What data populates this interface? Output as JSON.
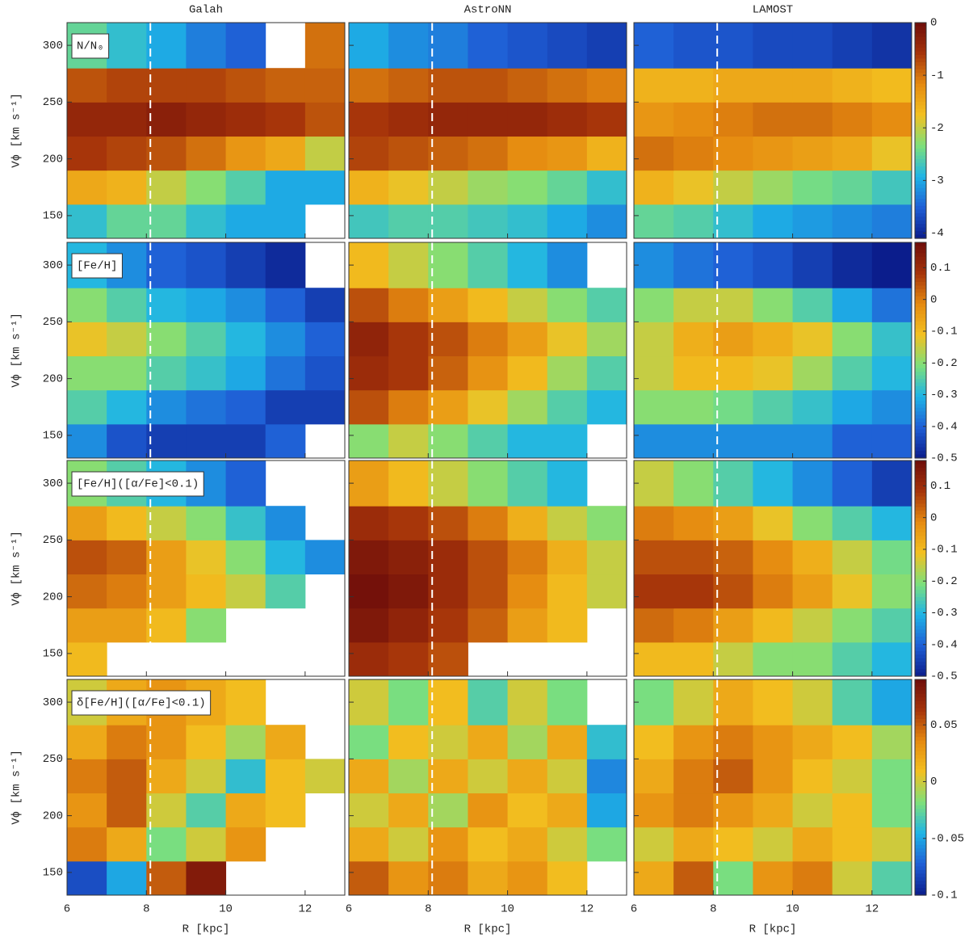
{
  "colormap": [
    "#0b1d8c",
    "#1f5fd6",
    "#1eb4e6",
    "#7ee07a",
    "#f3c020",
    "#e58a10",
    "#a5330a",
    "#6e0d0a"
  ],
  "chart_data": [
    {
      "type": "heatmap",
      "title": "Galah",
      "label": "N/N₀",
      "ylabel": "Vϕ [km s⁻¹]",
      "x_bins": [
        6,
        7,
        8,
        9,
        10,
        11,
        12,
        13
      ],
      "y_bins": [
        130,
        160,
        190,
        220,
        250,
        280,
        320
      ],
      "xlim": [
        6,
        13
      ],
      "ylim": [
        130,
        320
      ],
      "xticks": [
        6,
        8,
        10,
        12
      ],
      "yticks": [
        150,
        200,
        250,
        300
      ],
      "clim": [
        -4.1,
        0
      ],
      "reference_x": 8.1,
      "values": [
        [
          -2.8,
          -2.5,
          -2.5,
          -2.8,
          -3,
          -3,
          null
        ],
        [
          -1.5,
          -1.6,
          -2,
          -2.3,
          -2.6,
          -3,
          -3
        ],
        [
          -0.6,
          -0.7,
          -0.8,
          -1,
          -1.3,
          -1.5,
          -2
        ],
        [
          -0.4,
          -0.4,
          -0.3,
          -0.4,
          -0.5,
          -0.6,
          -0.8
        ],
        [
          -0.8,
          -0.7,
          -0.7,
          -0.7,
          -0.8,
          -0.9,
          -0.9
        ],
        [
          -2.5,
          -2.8,
          -3,
          -3.3,
          -3.5,
          null,
          -1
        ]
      ]
    },
    {
      "type": "heatmap",
      "title": "AstroNN",
      "x_bins": [
        6,
        7,
        8,
        9,
        10,
        11,
        12,
        13
      ],
      "y_bins": [
        130,
        160,
        190,
        220,
        250,
        280,
        320
      ],
      "xlim": [
        6,
        13
      ],
      "ylim": [
        130,
        320
      ],
      "xticks": [
        6,
        8,
        10,
        12
      ],
      "yticks": [
        150,
        200,
        250,
        300
      ],
      "clim": [
        -4.1,
        0
      ],
      "reference_x": 8.1,
      "values": [
        [
          -2.7,
          -2.6,
          -2.6,
          -2.7,
          -2.8,
          -3,
          -3.2
        ],
        [
          -1.6,
          -1.8,
          -2,
          -2.2,
          -2.3,
          -2.5,
          -2.8
        ],
        [
          -0.7,
          -0.8,
          -0.9,
          -1,
          -1.2,
          -1.3,
          -1.6
        ],
        [
          -0.6,
          -0.5,
          -0.4,
          -0.4,
          -0.4,
          -0.5,
          -0.6
        ],
        [
          -1,
          -0.9,
          -0.8,
          -0.8,
          -0.9,
          -1,
          -1.1
        ],
        [
          -3,
          -3.2,
          -3.3,
          -3.5,
          -3.6,
          -3.7,
          -3.8
        ]
      ]
    },
    {
      "type": "heatmap",
      "title": "LAMOST",
      "x_bins": [
        6,
        7,
        8,
        9,
        10,
        11,
        12,
        13
      ],
      "y_bins": [
        130,
        160,
        190,
        220,
        250,
        280,
        320
      ],
      "xlim": [
        6,
        13
      ],
      "ylim": [
        130,
        320
      ],
      "xticks": [
        6,
        8,
        10,
        12
      ],
      "yticks": [
        150,
        200,
        250,
        300
      ],
      "clim": [
        -4.1,
        0
      ],
      "reference_x": 8.1,
      "colorbar_ticks": [
        0,
        -1,
        -2,
        -3,
        -4
      ],
      "values": [
        [
          -2.5,
          -2.6,
          -2.8,
          -3,
          -3.1,
          -3.2,
          -3.3
        ],
        [
          -1.6,
          -1.8,
          -2,
          -2.2,
          -2.4,
          -2.5,
          -2.7
        ],
        [
          -1,
          -1.1,
          -1.2,
          -1.3,
          -1.4,
          -1.5,
          -1.8
        ],
        [
          -1.3,
          -1.2,
          -1.1,
          -1,
          -1,
          -1.1,
          -1.2
        ],
        [
          -1.6,
          -1.6,
          -1.5,
          -1.5,
          -1.5,
          -1.6,
          -1.7
        ],
        [
          -3.5,
          -3.6,
          -3.6,
          -3.7,
          -3.7,
          -3.8,
          -3.9
        ]
      ]
    },
    {
      "type": "heatmap",
      "label": "[Fe/H]",
      "ylabel": "Vϕ [km s⁻¹]",
      "x_bins": [
        6,
        7,
        8,
        9,
        10,
        11,
        12,
        13
      ],
      "y_bins": [
        130,
        160,
        190,
        220,
        250,
        280,
        320
      ],
      "xlim": [
        6,
        13
      ],
      "ylim": [
        130,
        320
      ],
      "xticks": [
        6,
        8,
        10,
        12
      ],
      "yticks": [
        150,
        200,
        250,
        300
      ],
      "clim": [
        -0.5,
        0.18
      ],
      "reference_x": 8.1,
      "values": [
        [
          -0.35,
          -0.42,
          -0.45,
          -0.45,
          -0.45,
          -0.4,
          null
        ],
        [
          -0.25,
          -0.3,
          -0.35,
          -0.38,
          -0.4,
          -0.45,
          -0.45
        ],
        [
          -0.2,
          -0.2,
          -0.25,
          -0.28,
          -0.32,
          -0.38,
          -0.42
        ],
        [
          -0.12,
          -0.15,
          -0.2,
          -0.25,
          -0.3,
          -0.35,
          -0.4
        ],
        [
          -0.2,
          -0.25,
          -0.3,
          -0.32,
          -0.35,
          -0.4,
          -0.45
        ],
        [
          -0.3,
          -0.35,
          -0.4,
          -0.42,
          -0.45,
          -0.48,
          null
        ]
      ]
    },
    {
      "type": "heatmap",
      "x_bins": [
        6,
        7,
        8,
        9,
        10,
        11,
        12,
        13
      ],
      "y_bins": [
        130,
        160,
        190,
        220,
        250,
        280,
        320
      ],
      "xlim": [
        6,
        13
      ],
      "ylim": [
        130,
        320
      ],
      "xticks": [
        6,
        8,
        10,
        12
      ],
      "yticks": [
        150,
        200,
        250,
        300
      ],
      "clim": [
        -0.5,
        0.18
      ],
      "reference_x": 8.1,
      "values": [
        [
          -0.2,
          -0.15,
          -0.2,
          -0.25,
          -0.3,
          -0.3,
          null
        ],
        [
          0.05,
          0,
          -0.05,
          -0.12,
          -0.18,
          -0.25,
          -0.3
        ],
        [
          0.1,
          0.08,
          0.03,
          -0.03,
          -0.1,
          -0.18,
          -0.25
        ],
        [
          0.12,
          0.08,
          0.05,
          0,
          -0.05,
          -0.12,
          -0.18
        ],
        [
          0.05,
          0,
          -0.05,
          -0.1,
          -0.15,
          -0.2,
          -0.25
        ],
        [
          -0.1,
          -0.15,
          -0.2,
          -0.25,
          -0.3,
          -0.35,
          null
        ]
      ]
    },
    {
      "type": "heatmap",
      "x_bins": [
        6,
        7,
        8,
        9,
        10,
        11,
        12,
        13
      ],
      "y_bins": [
        130,
        160,
        190,
        220,
        250,
        280,
        320
      ],
      "xlim": [
        6,
        13
      ],
      "ylim": [
        130,
        320
      ],
      "xticks": [
        6,
        8,
        10,
        12
      ],
      "yticks": [
        150,
        200,
        250,
        300
      ],
      "clim": [
        -0.5,
        0.18
      ],
      "reference_x": 8.1,
      "colorbar_ticks": [
        0.1,
        0,
        -0.1,
        -0.2,
        -0.3,
        -0.4,
        -0.5
      ],
      "values": [
        [
          -0.35,
          -0.35,
          -0.35,
          -0.35,
          -0.35,
          -0.4,
          -0.4
        ],
        [
          -0.2,
          -0.2,
          -0.22,
          -0.25,
          -0.28,
          -0.32,
          -0.35
        ],
        [
          -0.15,
          -0.1,
          -0.1,
          -0.12,
          -0.18,
          -0.25,
          -0.3
        ],
        [
          -0.15,
          -0.08,
          -0.05,
          -0.08,
          -0.12,
          -0.2,
          -0.28
        ],
        [
          -0.2,
          -0.15,
          -0.15,
          -0.2,
          -0.25,
          -0.32,
          -0.38
        ],
        [
          -0.35,
          -0.38,
          -0.4,
          -0.42,
          -0.45,
          -0.48,
          -0.5
        ]
      ]
    },
    {
      "type": "heatmap",
      "label": "[Fe/H]([α/Fe]<0.1)",
      "ylabel": "Vϕ [km s⁻¹]",
      "x_bins": [
        6,
        7,
        8,
        9,
        10,
        11,
        12,
        13
      ],
      "y_bins": [
        130,
        160,
        190,
        220,
        250,
        280,
        320
      ],
      "xlim": [
        6,
        13
      ],
      "ylim": [
        130,
        320
      ],
      "xticks": [
        6,
        8,
        10,
        12
      ],
      "yticks": [
        150,
        200,
        250,
        300
      ],
      "clim": [
        -0.5,
        0.18
      ],
      "reference_x": 8.1,
      "values": [
        [
          -0.1,
          null,
          null,
          null,
          null,
          null,
          null
        ],
        [
          -0.05,
          -0.05,
          -0.1,
          -0.2,
          null,
          null,
          null
        ],
        [
          0.02,
          0,
          -0.05,
          -0.1,
          -0.15,
          -0.25,
          null
        ],
        [
          0.05,
          0.03,
          -0.05,
          -0.12,
          -0.2,
          -0.3,
          -0.35
        ],
        [
          -0.05,
          -0.1,
          -0.15,
          -0.2,
          -0.28,
          -0.35,
          null
        ],
        [
          -0.2,
          -0.25,
          -0.3,
          -0.35,
          -0.4,
          null,
          null
        ]
      ]
    },
    {
      "type": "heatmap",
      "x_bins": [
        6,
        7,
        8,
        9,
        10,
        11,
        12,
        13
      ],
      "y_bins": [
        130,
        160,
        190,
        220,
        250,
        280,
        320
      ],
      "xlim": [
        6,
        13
      ],
      "ylim": [
        130,
        320
      ],
      "xticks": [
        6,
        8,
        10,
        12
      ],
      "yticks": [
        150,
        200,
        250,
        300
      ],
      "clim": [
        -0.5,
        0.18
      ],
      "reference_x": 8.1,
      "values": [
        [
          0.1,
          0.08,
          0.05,
          null,
          null,
          null,
          null
        ],
        [
          0.15,
          0.12,
          0.08,
          0.03,
          -0.05,
          -0.1,
          null
        ],
        [
          0.17,
          0.15,
          0.1,
          0.05,
          -0.02,
          -0.1,
          -0.15
        ],
        [
          0.15,
          0.13,
          0.1,
          0.05,
          0,
          -0.08,
          -0.15
        ],
        [
          0.1,
          0.08,
          0.05,
          0,
          -0.08,
          -0.15,
          -0.2
        ],
        [
          -0.05,
          -0.1,
          -0.15,
          -0.2,
          -0.25,
          -0.3,
          null
        ]
      ]
    },
    {
      "type": "heatmap",
      "x_bins": [
        6,
        7,
        8,
        9,
        10,
        11,
        12,
        13
      ],
      "y_bins": [
        130,
        160,
        190,
        220,
        250,
        280,
        320
      ],
      "xlim": [
        6,
        13
      ],
      "ylim": [
        130,
        320
      ],
      "xticks": [
        6,
        8,
        10,
        12
      ],
      "yticks": [
        150,
        200,
        250,
        300
      ],
      "clim": [
        -0.5,
        0.18
      ],
      "reference_x": 8.1,
      "colorbar_ticks": [
        0.1,
        0,
        -0.1,
        -0.2,
        -0.3,
        -0.4,
        -0.5
      ],
      "values": [
        [
          -0.1,
          -0.1,
          -0.15,
          -0.2,
          -0.2,
          -0.25,
          -0.3
        ],
        [
          0.02,
          0,
          -0.05,
          -0.1,
          -0.15,
          -0.2,
          -0.25
        ],
        [
          0.08,
          0.08,
          0.05,
          0,
          -0.05,
          -0.12,
          -0.2
        ],
        [
          0.05,
          0.05,
          0.03,
          -0.02,
          -0.08,
          -0.15,
          -0.22
        ],
        [
          0,
          -0.02,
          -0.05,
          -0.12,
          -0.2,
          -0.25,
          -0.3
        ],
        [
          -0.15,
          -0.2,
          -0.25,
          -0.3,
          -0.35,
          -0.4,
          -0.45
        ]
      ]
    },
    {
      "type": "heatmap",
      "label": "δ[Fe/H]([α/Fe]<0.1)",
      "ylabel": "Vϕ [km s⁻¹]",
      "xlabel": "R [kpc]",
      "x_bins": [
        6,
        7,
        8,
        9,
        10,
        11,
        12,
        13
      ],
      "y_bins": [
        130,
        160,
        190,
        220,
        250,
        280,
        320
      ],
      "xlim": [
        6,
        13
      ],
      "ylim": [
        130,
        320
      ],
      "xticks": [
        6,
        8,
        10,
        12
      ],
      "yticks": [
        150,
        200,
        250,
        300
      ],
      "clim": [
        -0.1,
        0.09
      ],
      "reference_x": 8.1,
      "values": [
        [
          -0.08,
          -0.05,
          0.05,
          0.08,
          null,
          null,
          null
        ],
        [
          0.04,
          0.02,
          -0.02,
          0,
          0.03,
          null,
          null
        ],
        [
          0.03,
          0.05,
          0,
          -0.03,
          0.02,
          0.01,
          null
        ],
        [
          0.04,
          0.05,
          0.02,
          0,
          -0.04,
          0.01,
          0
        ],
        [
          0.02,
          0.04,
          0.03,
          0.01,
          -0.01,
          0.02,
          null
        ],
        [
          0,
          0.02,
          0.03,
          0.02,
          0.01,
          null,
          null
        ]
      ]
    },
    {
      "type": "heatmap",
      "xlabel": "R [kpc]",
      "x_bins": [
        6,
        7,
        8,
        9,
        10,
        11,
        12,
        13
      ],
      "y_bins": [
        130,
        160,
        190,
        220,
        250,
        280,
        320
      ],
      "xlim": [
        6,
        13
      ],
      "ylim": [
        130,
        320
      ],
      "xticks": [
        6,
        8,
        10,
        12
      ],
      "yticks": [
        150,
        200,
        250,
        300
      ],
      "clim": [
        -0.1,
        0.09
      ],
      "reference_x": 8.1,
      "values": [
        [
          0.05,
          0.03,
          0.04,
          0.02,
          0.03,
          0.01,
          null
        ],
        [
          0.02,
          0,
          0.03,
          0.01,
          0.02,
          0,
          -0.02
        ],
        [
          0,
          0.02,
          -0.01,
          0.03,
          0.01,
          0.02,
          -0.05
        ],
        [
          0.02,
          -0.01,
          0.02,
          0,
          0.02,
          0,
          -0.06
        ],
        [
          -0.02,
          0.01,
          0,
          0.02,
          -0.01,
          0.02,
          -0.04
        ],
        [
          0,
          -0.02,
          0.01,
          -0.03,
          0,
          -0.02,
          null
        ]
      ]
    },
    {
      "type": "heatmap",
      "xlabel": "R [kpc]",
      "x_bins": [
        6,
        7,
        8,
        9,
        10,
        11,
        12,
        13
      ],
      "y_bins": [
        130,
        160,
        190,
        220,
        250,
        280,
        320
      ],
      "xlim": [
        6,
        13
      ],
      "ylim": [
        130,
        320
      ],
      "xticks": [
        6,
        8,
        10,
        12
      ],
      "yticks": [
        150,
        200,
        250,
        300
      ],
      "clim": [
        -0.1,
        0.09
      ],
      "reference_x": 8.1,
      "colorbar_ticks": [
        0.05,
        0,
        -0.05,
        -0.1
      ],
      "values": [
        [
          0.02,
          0.05,
          -0.02,
          0.03,
          0.04,
          0,
          -0.03
        ],
        [
          0,
          0.02,
          0.01,
          0,
          0.02,
          0.01,
          0
        ],
        [
          0.03,
          0.04,
          0.03,
          0.02,
          0,
          0.01,
          -0.02
        ],
        [
          0.02,
          0.04,
          0.05,
          0.03,
          0.01,
          0,
          -0.02
        ],
        [
          0.01,
          0.03,
          0.04,
          0.03,
          0.02,
          0.01,
          -0.01
        ],
        [
          -0.02,
          0,
          0.02,
          0.01,
          0,
          -0.03,
          -0.05
        ]
      ]
    }
  ]
}
